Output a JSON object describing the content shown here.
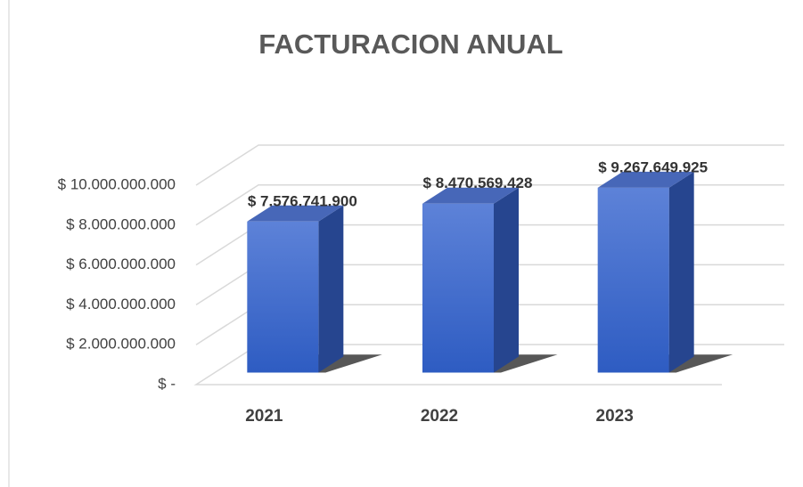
{
  "chart_data": {
    "type": "bar3d",
    "title": "FACTURACION ANUAL",
    "categories": [
      "2021",
      "2022",
      "2023"
    ],
    "values": [
      7576741900,
      8470569428,
      9267649925
    ],
    "value_labels": [
      "$ 7.576.741.900",
      "$ 8.470.569.428",
      "$ 9.267.649.925"
    ],
    "color": "#3f6ad0",
    "ylim": [
      0,
      10000000000
    ],
    "yticks": [
      {
        "value": 0,
        "label": "$ -"
      },
      {
        "value": 2000000000,
        "label": "$ 2.000.000.000"
      },
      {
        "value": 4000000000,
        "label": "$ 4.000.000.000"
      },
      {
        "value": 6000000000,
        "label": "$ 6.000.000.000"
      },
      {
        "value": 8000000000,
        "label": "$ 8.000.000.000"
      },
      {
        "value": 10000000000,
        "label": "$ 10.000.000.000"
      }
    ],
    "grid": true
  }
}
